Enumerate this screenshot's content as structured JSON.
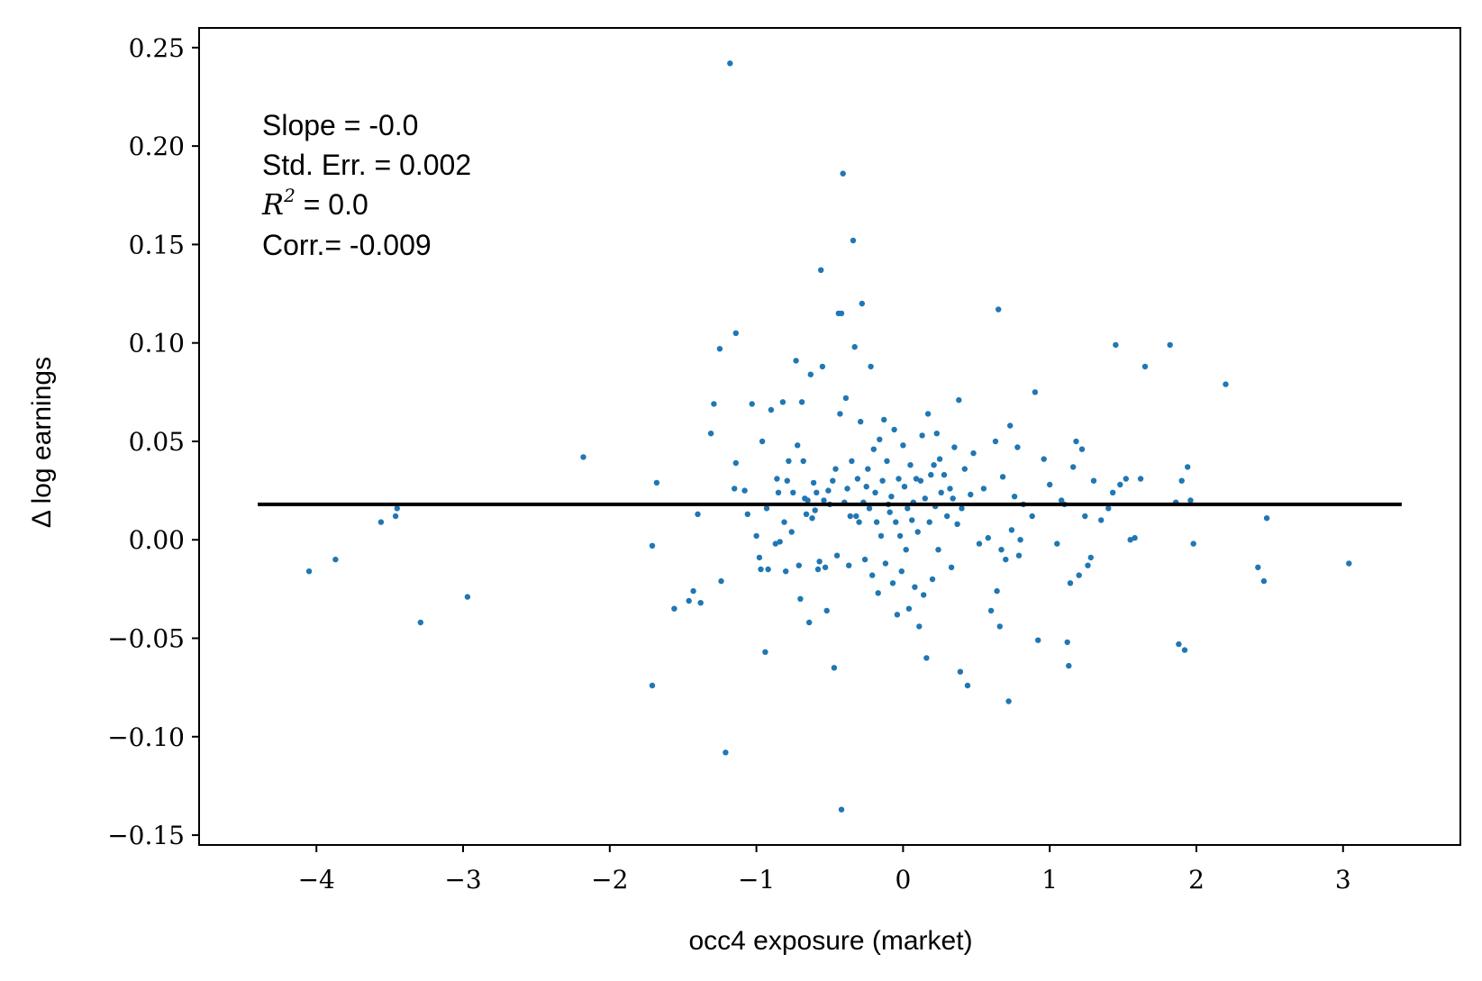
{
  "chart_data": {
    "type": "scatter",
    "xlabel": "occ4 exposure (market)",
    "ylabel": "Δ log earnings",
    "xlim": [
      -4.8,
      3.8
    ],
    "ylim": [
      -0.155,
      0.26
    ],
    "x_ticks": [
      -4,
      -3,
      -2,
      -1,
      0,
      1,
      2,
      3
    ],
    "x_tick_labels": [
      "−4",
      "−3",
      "−2",
      "−1",
      "0",
      "1",
      "2",
      "3"
    ],
    "y_ticks": [
      -0.15,
      -0.1,
      -0.05,
      0.0,
      0.05,
      0.1,
      0.15,
      0.2,
      0.25
    ],
    "y_tick_labels": [
      "−0.15",
      "−0.10",
      "−0.05",
      "0.00",
      "0.05",
      "0.10",
      "0.15",
      "0.20",
      "0.25"
    ],
    "grid": false,
    "point_color": "#1f77b4",
    "fit_line": {
      "x": [
        -4.4,
        3.4
      ],
      "y": [
        0.018,
        0.018
      ],
      "color": "#000000"
    },
    "annotations": {
      "slope": "Slope = -0.0",
      "std_err": "Std. Err. = 0.002",
      "r2_symbol": "R",
      "r2_exponent": "2",
      "r2_value": " = 0.0",
      "corr": "Corr.= -0.009"
    },
    "points": [
      [
        -4.05,
        -0.016
      ],
      [
        -3.87,
        -0.01
      ],
      [
        -3.56,
        0.009
      ],
      [
        -3.46,
        0.012
      ],
      [
        -3.45,
        0.016
      ],
      [
        -3.29,
        -0.042
      ],
      [
        -2.97,
        -0.029
      ],
      [
        -2.18,
        0.042
      ],
      [
        -1.71,
        -0.003
      ],
      [
        -1.71,
        -0.074
      ],
      [
        -1.68,
        0.029
      ],
      [
        -1.56,
        -0.035
      ],
      [
        -1.46,
        -0.031
      ],
      [
        -1.43,
        -0.026
      ],
      [
        -1.4,
        0.013
      ],
      [
        -1.38,
        -0.032
      ],
      [
        -1.31,
        0.054
      ],
      [
        -1.29,
        0.069
      ],
      [
        -1.25,
        0.097
      ],
      [
        -1.24,
        -0.021
      ],
      [
        -1.21,
        -0.108
      ],
      [
        -1.18,
        0.242
      ],
      [
        -1.15,
        0.026
      ],
      [
        -1.14,
        0.039
      ],
      [
        -1.14,
        0.105
      ],
      [
        -1.08,
        0.025
      ],
      [
        -1.06,
        0.013
      ],
      [
        -1.03,
        0.069
      ],
      [
        -1.0,
        0.002
      ],
      [
        -0.98,
        -0.009
      ],
      [
        -0.97,
        -0.015
      ],
      [
        -0.96,
        0.05
      ],
      [
        -0.94,
        -0.057
      ],
      [
        -0.93,
        0.016
      ],
      [
        -0.92,
        -0.015
      ],
      [
        -0.9,
        0.066
      ],
      [
        -0.87,
        -0.002
      ],
      [
        -0.86,
        0.031
      ],
      [
        -0.85,
        0.024
      ],
      [
        -0.84,
        -0.001
      ],
      [
        -0.82,
        0.07
      ],
      [
        -0.81,
        0.009
      ],
      [
        -0.8,
        -0.016
      ],
      [
        -0.79,
        0.03
      ],
      [
        -0.78,
        0.04
      ],
      [
        -0.76,
        0.004
      ],
      [
        -0.75,
        0.024
      ],
      [
        -0.73,
        0.091
      ],
      [
        -0.72,
        0.048
      ],
      [
        -0.71,
        -0.013
      ],
      [
        -0.7,
        -0.03
      ],
      [
        -0.69,
        0.07
      ],
      [
        -0.68,
        0.04
      ],
      [
        -0.67,
        0.021
      ],
      [
        -0.66,
        0.013
      ],
      [
        -0.65,
        0.02
      ],
      [
        -0.64,
        -0.042
      ],
      [
        -0.63,
        0.084
      ],
      [
        -0.62,
        0.011
      ],
      [
        -0.61,
        0.029
      ],
      [
        -0.6,
        0.015
      ],
      [
        -0.59,
        0.024
      ],
      [
        -0.58,
        -0.015
      ],
      [
        -0.57,
        -0.011
      ],
      [
        -0.56,
        0.137
      ],
      [
        -0.55,
        0.088
      ],
      [
        -0.54,
        0.02
      ],
      [
        -0.53,
        -0.014
      ],
      [
        -0.52,
        -0.036
      ],
      [
        -0.51,
        0.025
      ],
      [
        -0.5,
        0.018
      ],
      [
        -0.48,
        0.03
      ],
      [
        -0.47,
        -0.065
      ],
      [
        -0.46,
        0.036
      ],
      [
        -0.45,
        -0.008
      ],
      [
        -0.44,
        0.115
      ],
      [
        -0.43,
        0.064
      ],
      [
        -0.42,
        -0.137
      ],
      [
        -0.42,
        0.115
      ],
      [
        -0.41,
        0.186
      ],
      [
        -0.4,
        0.019
      ],
      [
        -0.39,
        0.072
      ],
      [
        -0.38,
        0.026
      ],
      [
        -0.37,
        -0.013
      ],
      [
        -0.36,
        0.012
      ],
      [
        -0.35,
        0.04
      ],
      [
        -0.34,
        0.152
      ],
      [
        -0.33,
        0.098
      ],
      [
        -0.32,
        0.012
      ],
      [
        -0.31,
        0.031
      ],
      [
        -0.3,
        0.009
      ],
      [
        -0.29,
        0.06
      ],
      [
        -0.28,
        0.12
      ],
      [
        -0.27,
        0.019
      ],
      [
        -0.26,
        -0.01
      ],
      [
        -0.25,
        0.027
      ],
      [
        -0.24,
        0.036
      ],
      [
        -0.23,
        0.016
      ],
      [
        -0.22,
        0.088
      ],
      [
        -0.21,
        -0.018
      ],
      [
        -0.2,
        0.046
      ],
      [
        -0.19,
        0.024
      ],
      [
        -0.18,
        0.009
      ],
      [
        -0.17,
        -0.027
      ],
      [
        -0.16,
        0.051
      ],
      [
        -0.15,
        0.002
      ],
      [
        -0.14,
        0.03
      ],
      [
        -0.13,
        0.061
      ],
      [
        -0.12,
        -0.012
      ],
      [
        -0.11,
        0.04
      ],
      [
        -0.1,
        0.018
      ],
      [
        -0.09,
        0.014
      ],
      [
        -0.08,
        0.022
      ],
      [
        -0.07,
        -0.022
      ],
      [
        -0.06,
        0.056
      ],
      [
        -0.05,
        0.009
      ],
      [
        -0.04,
        -0.038
      ],
      [
        -0.03,
        0.031
      ],
      [
        -0.02,
        0.002
      ],
      [
        -0.01,
        -0.016
      ],
      [
        0.0,
        0.048
      ],
      [
        0.01,
        0.027
      ],
      [
        0.02,
        -0.005
      ],
      [
        0.03,
        0.016
      ],
      [
        0.04,
        -0.035
      ],
      [
        0.05,
        0.038
      ],
      [
        0.06,
        0.01
      ],
      [
        0.07,
        0.019
      ],
      [
        0.08,
        -0.024
      ],
      [
        0.09,
        0.031
      ],
      [
        0.1,
        0.004
      ],
      [
        0.11,
        -0.044
      ],
      [
        0.12,
        0.03
      ],
      [
        0.13,
        0.053
      ],
      [
        0.14,
        -0.028
      ],
      [
        0.15,
        0.021
      ],
      [
        0.16,
        -0.06
      ],
      [
        0.17,
        0.064
      ],
      [
        0.18,
        0.009
      ],
      [
        0.19,
        0.033
      ],
      [
        0.2,
        -0.02
      ],
      [
        0.21,
        0.038
      ],
      [
        0.22,
        0.017
      ],
      [
        0.23,
        0.054
      ],
      [
        0.24,
        -0.005
      ],
      [
        0.25,
        0.041
      ],
      [
        0.26,
        0.024
      ],
      [
        0.28,
        0.033
      ],
      [
        0.3,
        0.012
      ],
      [
        0.32,
        0.026
      ],
      [
        0.33,
        -0.014
      ],
      [
        0.34,
        0.021
      ],
      [
        0.35,
        0.047
      ],
      [
        0.37,
        0.008
      ],
      [
        0.38,
        0.071
      ],
      [
        0.39,
        -0.067
      ],
      [
        0.4,
        0.016
      ],
      [
        0.42,
        0.036
      ],
      [
        0.44,
        -0.074
      ],
      [
        0.46,
        0.023
      ],
      [
        0.48,
        0.044
      ],
      [
        0.52,
        -0.002
      ],
      [
        0.55,
        0.026
      ],
      [
        0.58,
        0.001
      ],
      [
        0.6,
        -0.036
      ],
      [
        0.63,
        0.05
      ],
      [
        0.64,
        -0.026
      ],
      [
        0.65,
        0.117
      ],
      [
        0.66,
        -0.044
      ],
      [
        0.67,
        -0.005
      ],
      [
        0.68,
        0.032
      ],
      [
        0.7,
        -0.01
      ],
      [
        0.72,
        -0.082
      ],
      [
        0.73,
        0.058
      ],
      [
        0.74,
        0.005
      ],
      [
        0.76,
        0.022
      ],
      [
        0.78,
        0.047
      ],
      [
        0.79,
        -0.008
      ],
      [
        0.8,
        0.0
      ],
      [
        0.82,
        0.018
      ],
      [
        0.88,
        0.012
      ],
      [
        0.9,
        0.075
      ],
      [
        0.92,
        -0.051
      ],
      [
        0.96,
        0.041
      ],
      [
        1.0,
        0.028
      ],
      [
        1.05,
        -0.002
      ],
      [
        1.08,
        0.02
      ],
      [
        1.1,
        0.018
      ],
      [
        1.12,
        -0.052
      ],
      [
        1.13,
        -0.064
      ],
      [
        1.14,
        -0.022
      ],
      [
        1.16,
        0.037
      ],
      [
        1.18,
        0.05
      ],
      [
        1.2,
        -0.018
      ],
      [
        1.22,
        0.046
      ],
      [
        1.24,
        0.012
      ],
      [
        1.26,
        -0.013
      ],
      [
        1.28,
        -0.009
      ],
      [
        1.3,
        0.03
      ],
      [
        1.35,
        0.01
      ],
      [
        1.4,
        0.016
      ],
      [
        1.43,
        0.024
      ],
      [
        1.45,
        0.099
      ],
      [
        1.48,
        0.028
      ],
      [
        1.52,
        0.031
      ],
      [
        1.55,
        0.0
      ],
      [
        1.58,
        0.001
      ],
      [
        1.62,
        0.031
      ],
      [
        1.65,
        0.088
      ],
      [
        1.82,
        0.099
      ],
      [
        1.86,
        0.019
      ],
      [
        1.88,
        -0.053
      ],
      [
        1.9,
        0.03
      ],
      [
        1.92,
        -0.056
      ],
      [
        1.94,
        0.037
      ],
      [
        1.96,
        0.02
      ],
      [
        1.98,
        -0.002
      ],
      [
        2.2,
        0.079
      ],
      [
        2.42,
        -0.014
      ],
      [
        2.46,
        -0.021
      ],
      [
        2.48,
        0.011
      ],
      [
        3.04,
        -0.012
      ]
    ]
  }
}
